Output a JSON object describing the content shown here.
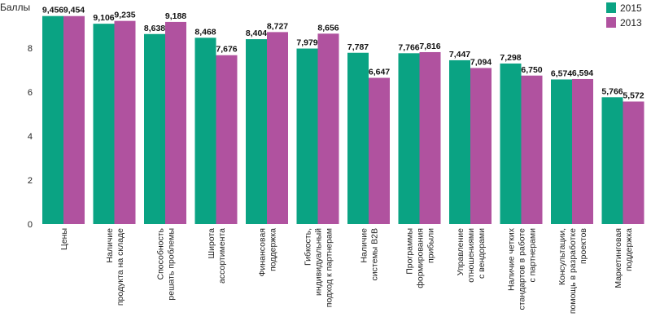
{
  "chart_data": {
    "type": "bar",
    "ylabel": "Баллы",
    "ylim": [
      0,
      10
    ],
    "yticks": [
      0,
      2,
      4,
      6,
      8
    ],
    "grid": false,
    "legend_position": "top-right",
    "categories": [
      [
        "Цены"
      ],
      [
        "Наличие",
        "продукта на складе"
      ],
      [
        "Способность",
        "решать проблемы"
      ],
      [
        "Широта",
        "ассортимента"
      ],
      [
        "Финансовая",
        "поддержка"
      ],
      [
        "Гибкость,",
        "индивидуальный",
        "подход к партнерам"
      ],
      [
        "Наличие",
        "системы B2B"
      ],
      [
        "Программы",
        "формирования",
        "прибыли"
      ],
      [
        "Управление",
        "отношениями",
        "с вендорами"
      ],
      [
        "Наличие четких",
        "стандартов в работе",
        "с партнерами"
      ],
      [
        "Консультации,",
        "помощь в разработке",
        "проектов"
      ],
      [
        "Маркетинговая",
        "поддержка"
      ]
    ],
    "series": [
      {
        "name": "2015",
        "color": "#0aa383",
        "values": [
          9.456,
          9.106,
          8.638,
          8.468,
          8.404,
          7.979,
          7.787,
          7.766,
          7.447,
          7.298,
          6.574,
          5.766
        ],
        "labels": [
          "9,456",
          "9,106",
          "8,638",
          "8,468",
          "8,404",
          "7,979",
          "7,787",
          "7,766",
          "7,447",
          "7,298",
          "6,574",
          "5,766"
        ]
      },
      {
        "name": "2013",
        "color": "#b0529f",
        "values": [
          9.454,
          9.235,
          9.188,
          7.676,
          8.727,
          8.656,
          6.647,
          7.816,
          7.094,
          6.75,
          6.594,
          5.572
        ],
        "labels": [
          "9,454",
          "9,235",
          "9,188",
          "7,676",
          "8,727",
          "8,656",
          "6,647",
          "7,816",
          "7,094",
          "6,750",
          "6,594",
          "5,572"
        ]
      }
    ]
  }
}
